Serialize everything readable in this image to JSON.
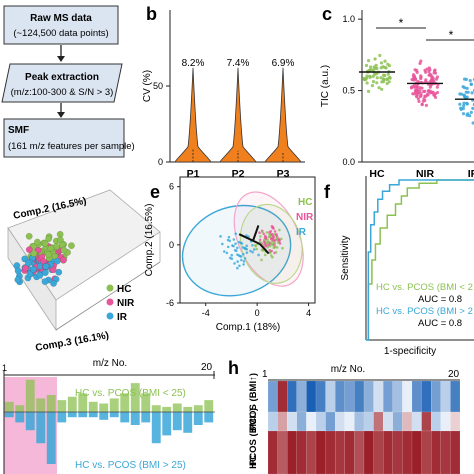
{
  "panel_letters": {
    "b": "b",
    "c": "c",
    "e": "e",
    "f": "f",
    "h": "h"
  },
  "workflow": {
    "box1_line1": "Raw MS data",
    "box1_line2": "(~124,500 data points)",
    "box2_line1": "Peak extraction",
    "box2_line2": "(m/z:100-300 & S/N > 3)",
    "box3_line1": "SMF",
    "box3_line2": "(161 m/z features per sample)"
  },
  "colors": {
    "hc": "#8cc152",
    "nir": "#e8559a",
    "ir": "#3aa7d8",
    "violin": "#f07f1e",
    "workflow_box": "#dbe5f1",
    "heat_red": "#a61c1c",
    "heat_blue": "#2166ac",
    "pink_band": "#f5b8d8"
  },
  "scatter3d": {
    "axis_comp2": "Comp.2 (16.5%)",
    "axis_comp3": "Comp.3 (16.1%)",
    "legend": [
      "HC",
      "NIR",
      "IR"
    ]
  },
  "chart_data": [
    {
      "panel": "b",
      "type": "violin",
      "categories": [
        "P1",
        "P2",
        "P3"
      ],
      "values": [
        8.2,
        7.4,
        6.9
      ],
      "value_labels": [
        "8.2%",
        "7.4%",
        "6.9%"
      ],
      "ylabel": "CV (%)",
      "yticks": [
        0,
        50
      ],
      "ylim": [
        0,
        100
      ]
    },
    {
      "panel": "c",
      "type": "scatter",
      "categories": [
        "HC",
        "NIR",
        "IR"
      ],
      "medians": [
        0.63,
        0.55,
        0.44
      ],
      "ylabel": "TIC (a.u.)",
      "yticks": [
        0.0,
        0.5,
        1.0
      ],
      "ylim": [
        0.0,
        1.05
      ],
      "significance": [
        "*",
        "*"
      ]
    },
    {
      "panel": "e",
      "type": "scatter",
      "xlabel": "Comp.1 (18%)",
      "ylabel": "Comp.2 (16.5%)",
      "xticks": [
        -4,
        0,
        4
      ],
      "yticks": [
        -6,
        0,
        6
      ],
      "xlim": [
        -6,
        4.5
      ],
      "ylim": [
        -6,
        7
      ],
      "legend": [
        "HC",
        "NIR",
        "IR"
      ]
    },
    {
      "panel": "f",
      "type": "line",
      "xlabel": "1-specificity",
      "ylabel": "Sensitivity",
      "series": [
        {
          "name": "HC vs. PCOS (BMI < 2",
          "auc": "AUC = 0.8",
          "x": [
            0,
            0.02,
            0.05,
            0.08,
            0.12,
            0.18,
            0.25,
            0.3,
            0.35,
            0.45,
            0.6,
            0.8,
            1.0
          ],
          "y": [
            0,
            0.35,
            0.5,
            0.6,
            0.7,
            0.78,
            0.85,
            0.9,
            0.95,
            0.98,
            1.0,
            1.0,
            1.0
          ]
        },
        {
          "name": "HC vs. PCOS (BMI > 2",
          "auc": "AUC = 0.8",
          "x": [
            0,
            0.02,
            0.04,
            0.07,
            0.1,
            0.14,
            0.2,
            0.28,
            0.4,
            0.6,
            1.0
          ],
          "y": [
            0,
            0.55,
            0.72,
            0.8,
            0.88,
            0.93,
            0.97,
            1.0,
            1.0,
            1.0,
            1.0
          ]
        }
      ]
    },
    {
      "panel": "g",
      "type": "bar",
      "title": "m/z No.",
      "xtick_first": "1",
      "xtick_last": "20",
      "series": [
        {
          "name": "HC vs. PCOS (BMI < 25)",
          "values": [
            0.3,
            0.2,
            0.95,
            0.4,
            0.5,
            0.35,
            0.45,
            0.55,
            0.3,
            0.25,
            0.4,
            0.55,
            0.85,
            0.55,
            0.2,
            0.15,
            0.25,
            0.15,
            0.2,
            0.35
          ]
        },
        {
          "name": "HC vs. PCOS (BMI > 25)",
          "values": [
            0.1,
            0.2,
            0.35,
            0.6,
            1.0,
            0.2,
            0.1,
            0.1,
            0.1,
            0.15,
            0.1,
            0.2,
            0.25,
            0.2,
            0.6,
            0.45,
            0.35,
            0.4,
            0.25,
            0.2
          ]
        }
      ]
    },
    {
      "panel": "h",
      "type": "heatmap",
      "title": "m/z No.",
      "xtick_first": "1",
      "xtick_last": "20",
      "rows": [
        "PCOS (BMI↑)",
        "PCOS (BMI↓)",
        "HC"
      ],
      "values": [
        [
          -0.6,
          0.9,
          -0.9,
          -0.5,
          -1.0,
          -0.8,
          -0.3,
          -0.7,
          -0.6,
          -0.8,
          -0.5,
          -0.2,
          -0.6,
          -0.4,
          -0.1,
          -0.7,
          -0.9,
          -0.6,
          -0.3,
          -0.8
        ],
        [
          -0.3,
          0.4,
          -0.2,
          -0.5,
          -0.1,
          -0.3,
          -0.6,
          -0.2,
          -0.1,
          -0.4,
          -0.3,
          0.6,
          -0.2,
          -0.5,
          0.3,
          -0.2,
          0.8,
          -0.3,
          -0.1,
          0.2
        ],
        [
          0.9,
          0.7,
          0.95,
          0.9,
          0.8,
          0.95,
          0.9,
          0.85,
          0.9,
          0.75,
          0.95,
          0.8,
          0.9,
          0.85,
          0.9,
          0.95,
          0.8,
          0.9,
          0.85,
          0.9
        ]
      ]
    }
  ]
}
